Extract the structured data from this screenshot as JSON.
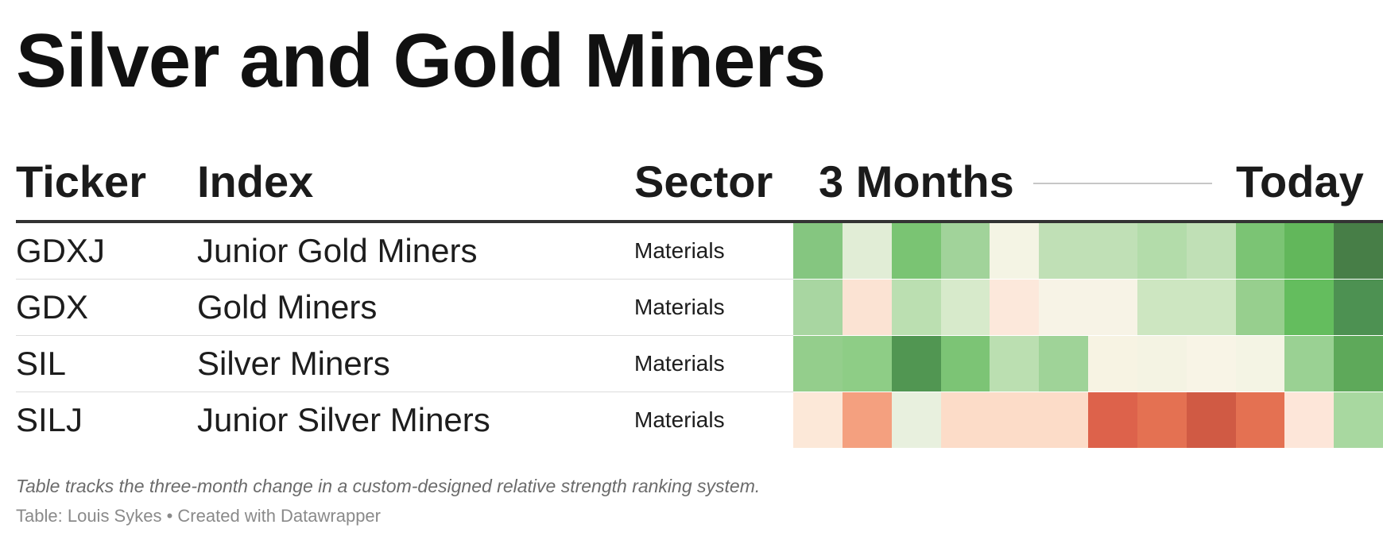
{
  "title": "Silver and Gold Miners",
  "notes": "Table tracks the three-month change in a custom-designed relative strength ranking system.",
  "footer": {
    "source_label": "Table:",
    "source_name": "Louis Sykes",
    "separator": "•",
    "created_with": "Created with Datawrapper"
  },
  "colors": {
    "strong_negative": "#d05a44",
    "neutral": "#f6f5e8",
    "strong_positive": "#477e47"
  },
  "chart_data": {
    "type": "table",
    "columns": [
      "Ticker",
      "Index",
      "Sector"
    ],
    "heatmap_header": {
      "start": "3 Months",
      "end": "Today"
    },
    "rows": [
      {
        "ticker": "GDXJ",
        "index": "Junior Gold Miners",
        "sector": "Materials",
        "heat_colors": [
          "#85c680",
          "#e1edd6",
          "#7ac473",
          "#a1d39a",
          "#f4f4e4",
          "#c0e0b6",
          "#c0e0b6",
          "#b3dcaa",
          "#c0e0b6",
          "#7bc474",
          "#62b75b",
          "#477e47"
        ]
      },
      {
        "ticker": "GDX",
        "index": "Gold Miners",
        "sector": "Materials",
        "heat_colors": [
          "#a8d6a1",
          "#fbe3d3",
          "#bbdfb1",
          "#d7eacb",
          "#fce8db",
          "#f7f3e6",
          "#f7f3e6",
          "#cde6c1",
          "#cde6c1",
          "#97cf8e",
          "#64bd5e",
          "#4d9152"
        ]
      },
      {
        "ticker": "SIL",
        "index": "Silver Miners",
        "sector": "Materials",
        "heat_colors": [
          "#94ce8c",
          "#8ecd86",
          "#519652",
          "#7cc475",
          "#bbdfb1",
          "#9fd398",
          "#f7f3e3",
          "#f4f3e3",
          "#f8f4e6",
          "#f4f4e4",
          "#9ad193",
          "#5ea95a"
        ]
      },
      {
        "ticker": "SILJ",
        "index": "Junior Silver Miners",
        "sector": "Materials",
        "heat_colors": [
          "#fce8d8",
          "#f4a07f",
          "#e8f0de",
          "#fcdcc8",
          "#fcdcc8",
          "#fcdcc8",
          "#dd624b",
          "#e47152",
          "#d05a44",
          "#e47152",
          "#fde6d9",
          "#a8d8a0"
        ]
      }
    ]
  }
}
